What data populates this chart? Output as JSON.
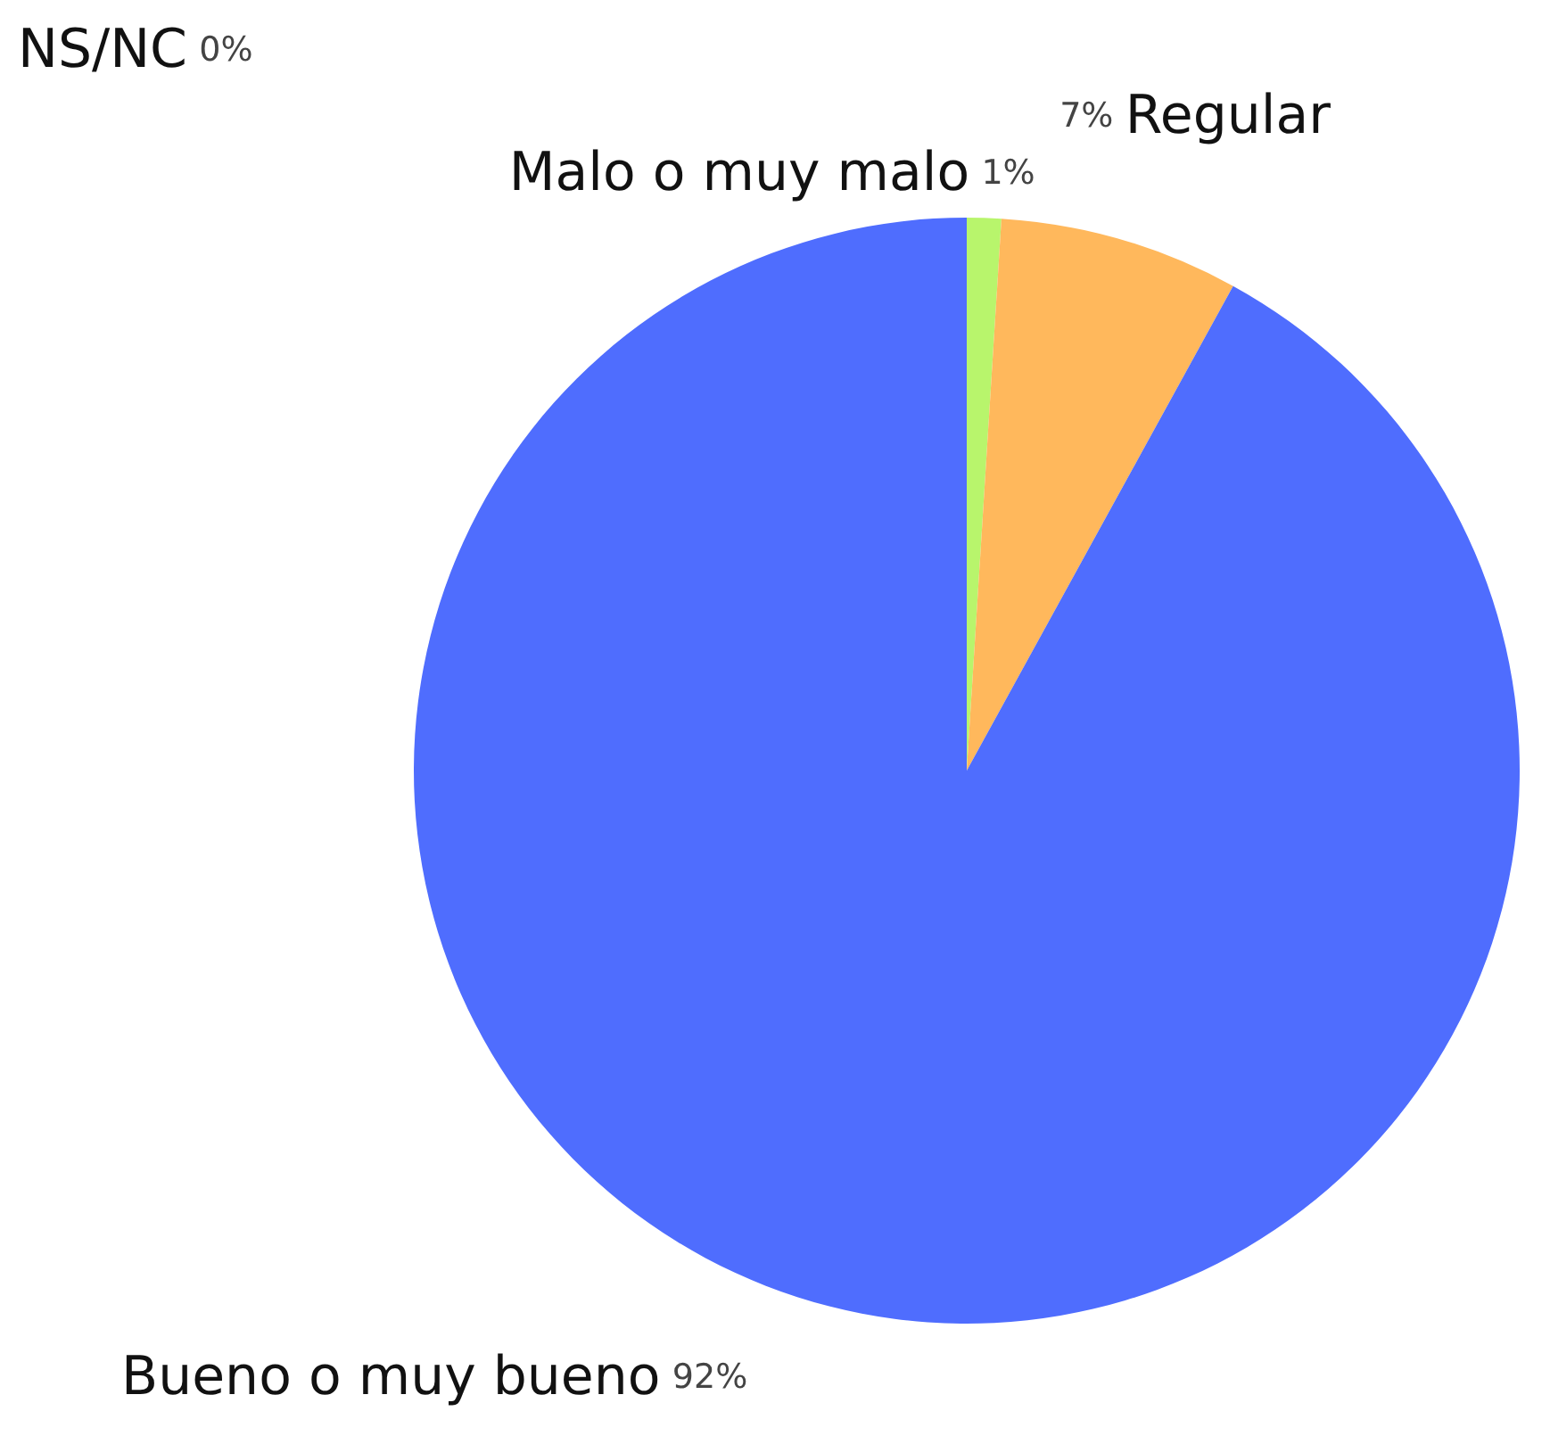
{
  "chart_data": {
    "type": "pie",
    "categories": [
      "Malo o muy malo",
      "Regular",
      "Bueno o muy bueno",
      "NS/NC"
    ],
    "values": [
      1,
      7,
      92,
      0
    ],
    "colors": [
      "#b8f56c",
      "#ffb85c",
      "#4f6dfe",
      "#9e9e9e"
    ],
    "value_labels": [
      "1%",
      "7%",
      "92%",
      "0%"
    ]
  }
}
